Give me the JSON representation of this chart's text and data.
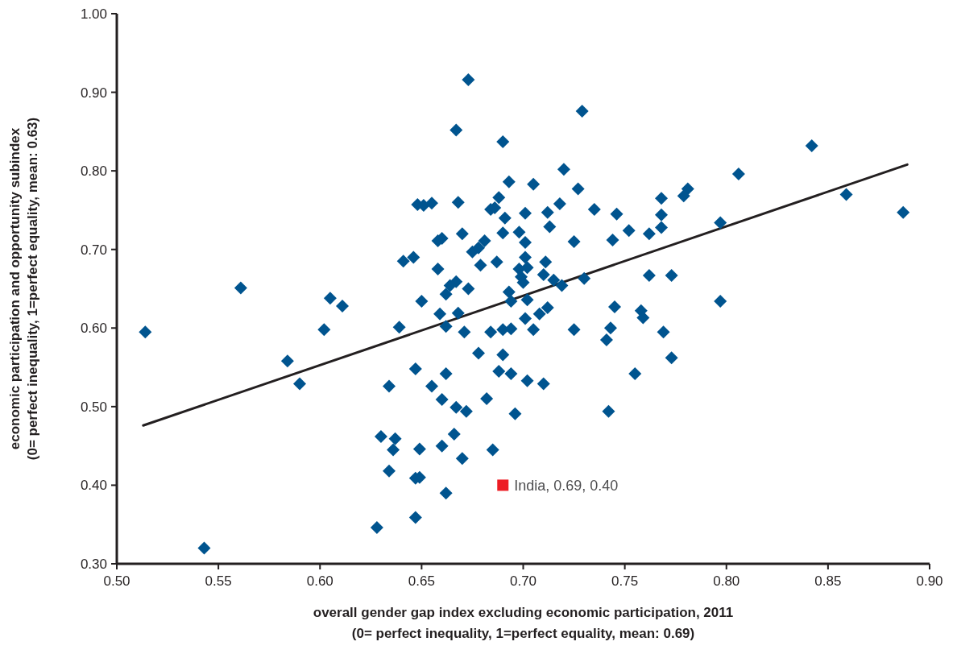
{
  "chart_data": {
    "type": "scatter",
    "xlabel": "overall gender gap index excluding economic participation, 2011\n(0= perfect inequality, 1=perfect equality, mean: 0.69)",
    "ylabel": "economic participation and opportunity subindex\n(0= perfect inequality, 1=perfect equality, mean: 0.63)",
    "xlim": [
      0.5,
      0.9
    ],
    "xticks": [
      {
        "value": 0.5,
        "label": "0.50"
      },
      {
        "value": 0.55,
        "label": "0.55"
      },
      {
        "value": 0.6,
        "label": "0.60"
      },
      {
        "value": 0.65,
        "label": "0.65"
      },
      {
        "value": 0.7,
        "label": "0.70"
      },
      {
        "value": 0.75,
        "label": "0.75"
      },
      {
        "value": 0.8,
        "label": "0.80"
      },
      {
        "value": 0.85,
        "label": "0.85"
      },
      {
        "value": 0.9,
        "label": "0.90"
      }
    ],
    "ylim": [
      0.3,
      1.0
    ],
    "yticks": [
      {
        "value": 0.3,
        "label": "0.30"
      },
      {
        "value": 0.4,
        "label": "0.40"
      },
      {
        "value": 0.5,
        "label": "0.50"
      },
      {
        "value": 0.6,
        "label": "0.60"
      },
      {
        "value": 0.7,
        "label": "0.70"
      },
      {
        "value": 0.8,
        "label": "0.80"
      },
      {
        "value": 0.9,
        "label": "0.90"
      },
      {
        "value": 1.0,
        "label": "1.00"
      }
    ],
    "grid": false,
    "annotations": [
      {
        "text": "India, 0.69, 0.40",
        "x": 0.69,
        "y": 0.4
      }
    ],
    "series": [
      {
        "color": "#00548f",
        "marker": "diamond",
        "x": [
          0.514,
          0.543,
          0.561,
          0.584,
          0.59,
          0.602,
          0.605,
          0.611,
          0.639,
          0.634,
          0.63,
          0.634,
          0.637,
          0.636,
          0.628,
          0.641,
          0.646,
          0.648,
          0.651,
          0.655,
          0.66,
          0.658,
          0.65,
          0.659,
          0.647,
          0.655,
          0.66,
          0.662,
          0.66,
          0.647,
          0.649,
          0.647,
          0.662,
          0.649,
          0.667,
          0.672,
          0.682,
          0.696,
          0.666,
          0.67,
          0.685,
          0.678,
          0.69,
          0.688,
          0.694,
          0.702,
          0.71,
          0.742,
          0.755,
          0.773,
          0.662,
          0.671,
          0.684,
          0.69,
          0.694,
          0.705,
          0.725,
          0.743,
          0.741,
          0.769,
          0.673,
          0.729,
          0.667,
          0.69,
          0.72,
          0.693,
          0.705,
          0.727,
          0.781,
          0.779,
          0.768,
          0.668,
          0.688,
          0.684,
          0.686,
          0.718,
          0.701,
          0.712,
          0.735,
          0.746,
          0.768,
          0.691,
          0.713,
          0.768,
          0.752,
          0.762,
          0.69,
          0.698,
          0.658,
          0.67,
          0.725,
          0.744,
          0.701,
          0.675,
          0.678,
          0.681,
          0.679,
          0.687,
          0.701,
          0.711,
          0.698,
          0.702,
          0.71,
          0.699,
          0.7,
          0.667,
          0.664,
          0.662,
          0.673,
          0.715,
          0.719,
          0.73,
          0.762,
          0.773,
          0.693,
          0.694,
          0.702,
          0.668,
          0.701,
          0.708,
          0.712,
          0.745,
          0.758,
          0.759,
          0.806,
          0.842,
          0.859,
          0.887,
          0.797,
          0.797
        ],
        "values": [
          0.595,
          0.32,
          0.651,
          0.558,
          0.529,
          0.598,
          0.638,
          0.628,
          0.601,
          0.526,
          0.462,
          0.418,
          0.459,
          0.445,
          0.346,
          0.685,
          0.69,
          0.757,
          0.756,
          0.759,
          0.714,
          0.675,
          0.634,
          0.618,
          0.548,
          0.526,
          0.509,
          0.542,
          0.45,
          0.409,
          0.41,
          0.359,
          0.39,
          0.446,
          0.499,
          0.494,
          0.51,
          0.491,
          0.465,
          0.434,
          0.445,
          0.568,
          0.566,
          0.545,
          0.542,
          0.533,
          0.529,
          0.494,
          0.542,
          0.562,
          0.602,
          0.595,
          0.595,
          0.598,
          0.599,
          0.598,
          0.598,
          0.6,
          0.585,
          0.595,
          0.916,
          0.876,
          0.852,
          0.837,
          0.802,
          0.786,
          0.783,
          0.777,
          0.777,
          0.768,
          0.765,
          0.76,
          0.766,
          0.751,
          0.753,
          0.758,
          0.746,
          0.747,
          0.751,
          0.745,
          0.744,
          0.74,
          0.729,
          0.728,
          0.724,
          0.72,
          0.721,
          0.722,
          0.711,
          0.72,
          0.71,
          0.712,
          0.709,
          0.697,
          0.702,
          0.711,
          0.68,
          0.684,
          0.69,
          0.684,
          0.675,
          0.677,
          0.668,
          0.665,
          0.658,
          0.659,
          0.654,
          0.643,
          0.65,
          0.661,
          0.654,
          0.663,
          0.667,
          0.667,
          0.646,
          0.634,
          0.636,
          0.619,
          0.612,
          0.618,
          0.626,
          0.627,
          0.622,
          0.613,
          0.796,
          0.832,
          0.77,
          0.747,
          0.734,
          0.634
        ]
      },
      {
        "color": "#ed1c24",
        "marker": "square",
        "x": [
          0.69
        ],
        "values": [
          0.4
        ]
      },
      {
        "type": "line",
        "color": "#231f20",
        "marker": "none",
        "line_style": "solid",
        "x": [
          0.513,
          0.889
        ],
        "values": [
          0.476,
          0.808
        ]
      }
    ]
  }
}
